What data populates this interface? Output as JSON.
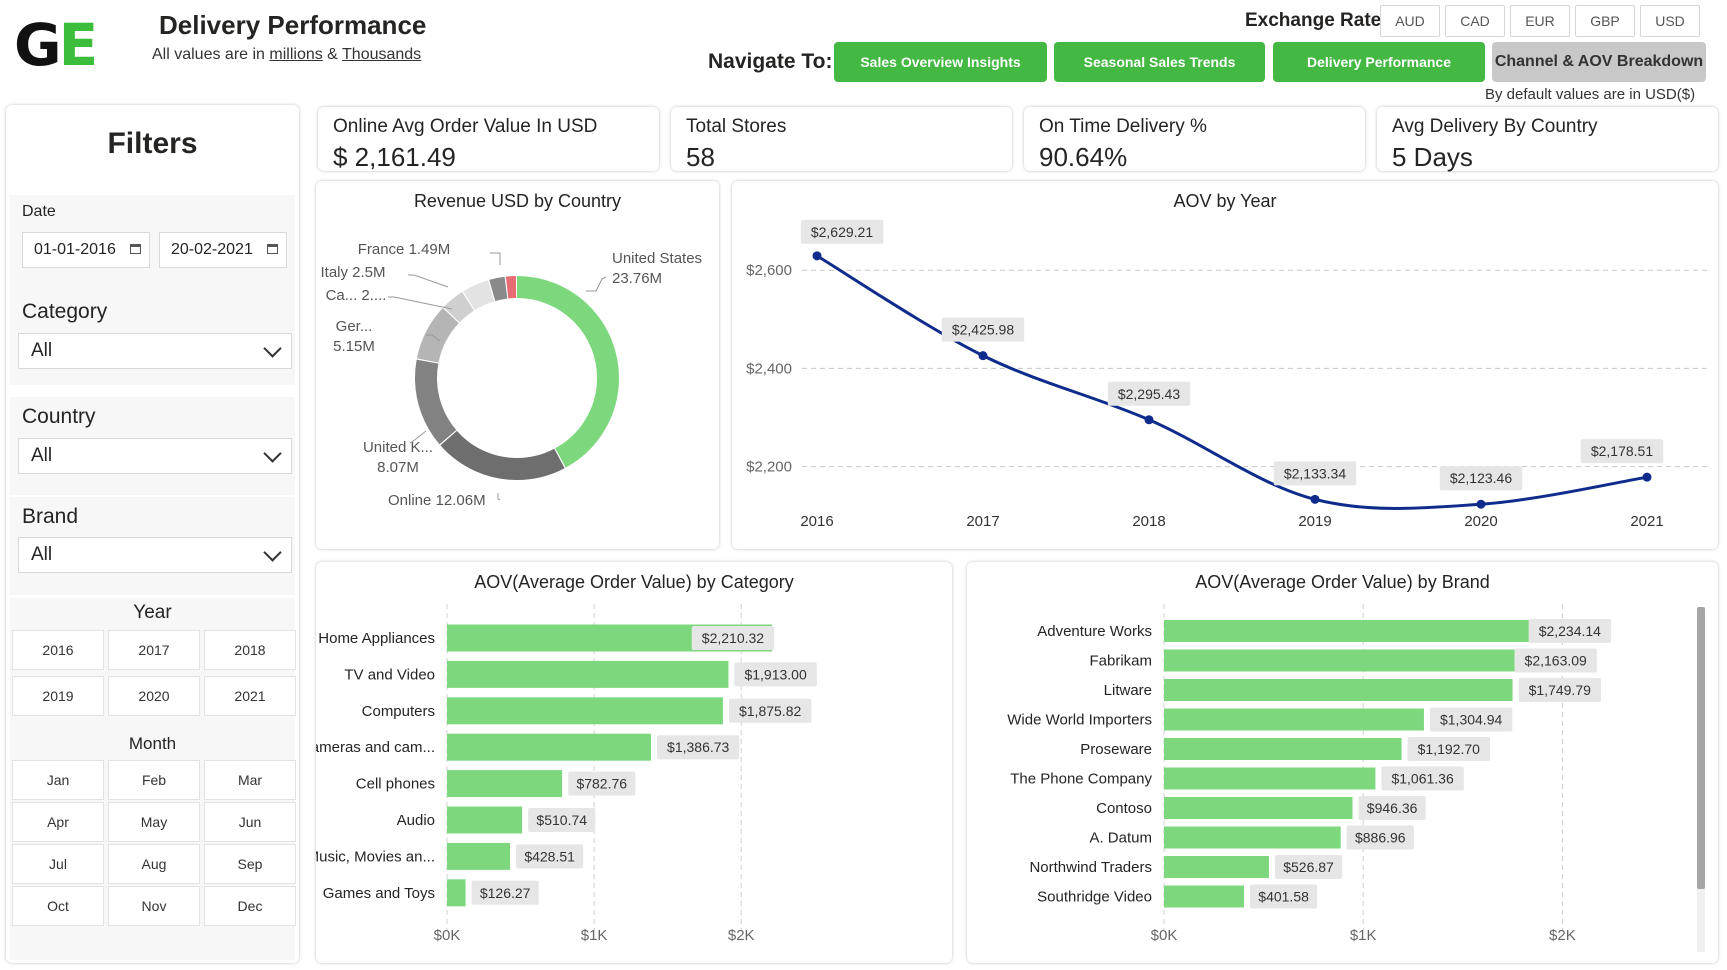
{
  "header": {
    "logo_g": "G",
    "logo_e": "E",
    "title": "Delivery Performance",
    "subtitle_prefix": "All values are in ",
    "subtitle_millions": "millions",
    "subtitle_amp": " & ",
    "subtitle_thousands": "Thousands"
  },
  "exchange": {
    "label": "Exchange Rate:",
    "options": [
      "AUD",
      "CAD",
      "EUR",
      "GBP",
      "USD"
    ]
  },
  "nav": {
    "label": "Navigate To:",
    "buttons": [
      "Sales Overview Insights",
      "Seasonal Sales Trends",
      "Delivery Performance",
      "Channel & AOV Breakdown"
    ],
    "default_note": "By default values are in USD($)"
  },
  "filters": {
    "title": "Filters",
    "date_label": "Date",
    "date_from": "01-01-2016",
    "date_to": "20-02-2021",
    "category_label": "Category",
    "category_value": "All",
    "country_label": "Country",
    "country_value": "All",
    "brand_label": "Brand",
    "brand_value": "All",
    "year_title": "Year",
    "years": [
      "2016",
      "2017",
      "2018",
      "2019",
      "2020",
      "2021"
    ],
    "month_title": "Month",
    "months": [
      "Jan",
      "Feb",
      "Mar",
      "Apr",
      "May",
      "Jun",
      "Jul",
      "Aug",
      "Sep",
      "Oct",
      "Nov",
      "Dec"
    ]
  },
  "kpis": [
    {
      "label": "Online Avg Order Value In USD",
      "value": "$ 2,161.49"
    },
    {
      "label": "Total Stores",
      "value": "58"
    },
    {
      "label": "On Time Delivery %",
      "value": "90.64%"
    },
    {
      "label": "Avg Delivery By Country",
      "value": "5 Days"
    }
  ],
  "colors": {
    "accent_green": "#43b843",
    "bar_green": "#7dd87d",
    "line_navy": "#0f2b8c",
    "donut_green": "#7dd87d",
    "donut_red": "#e86c74"
  },
  "chart_data": [
    {
      "type": "pie",
      "title": "Revenue USD by Country",
      "donut": true,
      "slices": [
        {
          "label": "United States",
          "display": "United States 23.76M",
          "value": 23.76
        },
        {
          "label": "Online",
          "display": "Online 12.06M",
          "value": 12.06
        },
        {
          "label": "United K...",
          "display": "United K... 8.07M",
          "value": 8.07
        },
        {
          "label": "Ger...",
          "display": "Ger... 5.15M",
          "value": 5.15
        },
        {
          "label": "Ca...",
          "display": "Ca... 2....",
          "value": 2.2
        },
        {
          "label": "Italy",
          "display": "Italy 2.5M",
          "value": 2.5
        },
        {
          "label": "France",
          "display": "France 1.49M",
          "value": 1.49
        },
        {
          "label": "",
          "display": "",
          "value": 1.0
        }
      ]
    },
    {
      "type": "line",
      "title": "AOV by Year",
      "x": [
        "2016",
        "2017",
        "2018",
        "2019",
        "2020",
        "2021"
      ],
      "values": [
        2629.21,
        2425.98,
        2295.43,
        2133.34,
        2123.46,
        2178.51
      ],
      "data_labels": [
        "$2,629.21",
        "$2,425.98",
        "$2,295.43",
        "$2,133.34",
        "$2,123.46",
        "$2,178.51"
      ],
      "y_ticks": [
        "$2,200",
        "$2,400",
        "$2,600"
      ],
      "y_tick_values": [
        2200,
        2400,
        2600
      ],
      "ylim": [
        2130,
        2690
      ],
      "grid": true
    },
    {
      "type": "bar",
      "orientation": "horizontal",
      "title": "AOV(Average Order Value) by Category",
      "categories": [
        "Home Appliances",
        "TV and Video",
        "Computers",
        "Cameras and cam...",
        "Cell phones",
        "Audio",
        "Music, Movies an...",
        "Games and Toys"
      ],
      "values": [
        2210.32,
        1913.0,
        1875.82,
        1386.73,
        782.76,
        510.74,
        428.51,
        126.27
      ],
      "data_labels": [
        "$2,210.32",
        "$1,913.00",
        "$1,875.82",
        "$1,386.73",
        "$782.76",
        "$510.74",
        "$428.51",
        "$126.27"
      ],
      "x_ticks": [
        "$0K",
        "$1K",
        "$2K"
      ],
      "x_tick_values": [
        0,
        1000,
        2000
      ],
      "xlim": [
        0,
        2420
      ]
    },
    {
      "type": "bar",
      "orientation": "horizontal",
      "title": "AOV(Average Order Value) by Brand",
      "categories": [
        "Adventure Works",
        "Fabrikam",
        "Litware",
        "Wide World Importers",
        "Proseware",
        "The Phone Company",
        "Contoso",
        "A. Datum",
        "Northwind Traders",
        "Southridge Video"
      ],
      "values": [
        2234.14,
        2163.09,
        1749.79,
        1304.94,
        1192.7,
        1061.36,
        946.36,
        886.96,
        526.87,
        401.58
      ],
      "data_labels": [
        "$2,234.14",
        "$2,163.09",
        "$1,749.79",
        "$1,304.94",
        "$1,192.70",
        "$1,061.36",
        "$946.36",
        "$886.96",
        "$526.87",
        "$401.58"
      ],
      "x_ticks": [
        "$0K",
        "$1K",
        "$2K"
      ],
      "x_tick_values": [
        0,
        1000,
        2000
      ],
      "xlim": [
        0,
        2500
      ]
    }
  ]
}
